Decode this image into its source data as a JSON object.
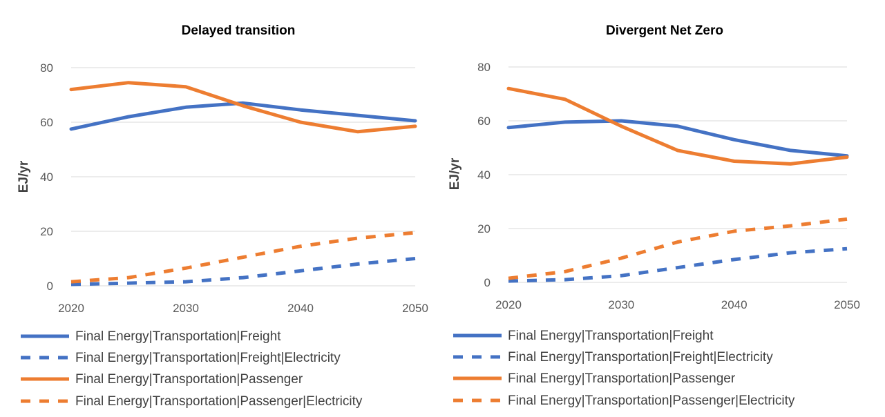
{
  "chart_data": [
    {
      "type": "line",
      "title": "Delayed transition",
      "xlabel": "",
      "ylabel": "EJ/yr",
      "x": [
        2020,
        2025,
        2030,
        2035,
        2040,
        2045,
        2050
      ],
      "xticks": [
        2020,
        2030,
        2040,
        2050
      ],
      "yticks": [
        0,
        20,
        40,
        60,
        80
      ],
      "xlim": [
        2020,
        2050
      ],
      "ylim": [
        0,
        80
      ],
      "grid": true,
      "legend_position": "bottom",
      "series": [
        {
          "name": "Final Energy|Transportation|Freight",
          "color": "#4472C4",
          "dash": "solid",
          "values": [
            57.5,
            62,
            65.5,
            67,
            64.5,
            62.5,
            60.5
          ]
        },
        {
          "name": "Final Energy|Transportation|Freight|Electricity",
          "color": "#4472C4",
          "dash": "dashed",
          "values": [
            0.5,
            1,
            1.5,
            3,
            5.5,
            8,
            10
          ]
        },
        {
          "name": "Final Energy|Transportation|Passenger",
          "color": "#ED7D31",
          "dash": "solid",
          "values": [
            72,
            74.5,
            73,
            66,
            60,
            56.5,
            58.5
          ]
        },
        {
          "name": "Final Energy|Transportation|Passenger|Electricity",
          "color": "#ED7D31",
          "dash": "dashed",
          "values": [
            1.5,
            3,
            6.5,
            10.5,
            14.5,
            17.5,
            19.5
          ]
        }
      ]
    },
    {
      "type": "line",
      "title": "Divergent Net Zero",
      "xlabel": "",
      "ylabel": "EJ/yr",
      "x": [
        2020,
        2025,
        2030,
        2035,
        2040,
        2045,
        2050
      ],
      "xticks": [
        2020,
        2030,
        2040,
        2050
      ],
      "yticks": [
        0,
        20,
        40,
        60,
        80
      ],
      "xlim": [
        2020,
        2050
      ],
      "ylim": [
        0,
        80
      ],
      "grid": true,
      "legend_position": "bottom",
      "series": [
        {
          "name": "Final Energy|Transportation|Freight",
          "color": "#4472C4",
          "dash": "solid",
          "values": [
            57.5,
            59.5,
            60,
            58,
            53,
            49,
            47
          ]
        },
        {
          "name": "Final Energy|Transportation|Freight|Electricity",
          "color": "#4472C4",
          "dash": "dashed",
          "values": [
            0.5,
            1,
            2.5,
            5.5,
            8.5,
            11,
            12.5
          ]
        },
        {
          "name": "Final Energy|Transportation|Passenger",
          "color": "#ED7D31",
          "dash": "solid",
          "values": [
            72,
            68,
            58,
            49,
            45,
            44,
            46.5
          ]
        },
        {
          "name": "Final Energy|Transportation|Passenger|Electricity",
          "color": "#ED7D31",
          "dash": "dashed",
          "values": [
            1.5,
            4,
            9,
            15,
            19,
            21,
            23.5
          ]
        }
      ]
    }
  ]
}
